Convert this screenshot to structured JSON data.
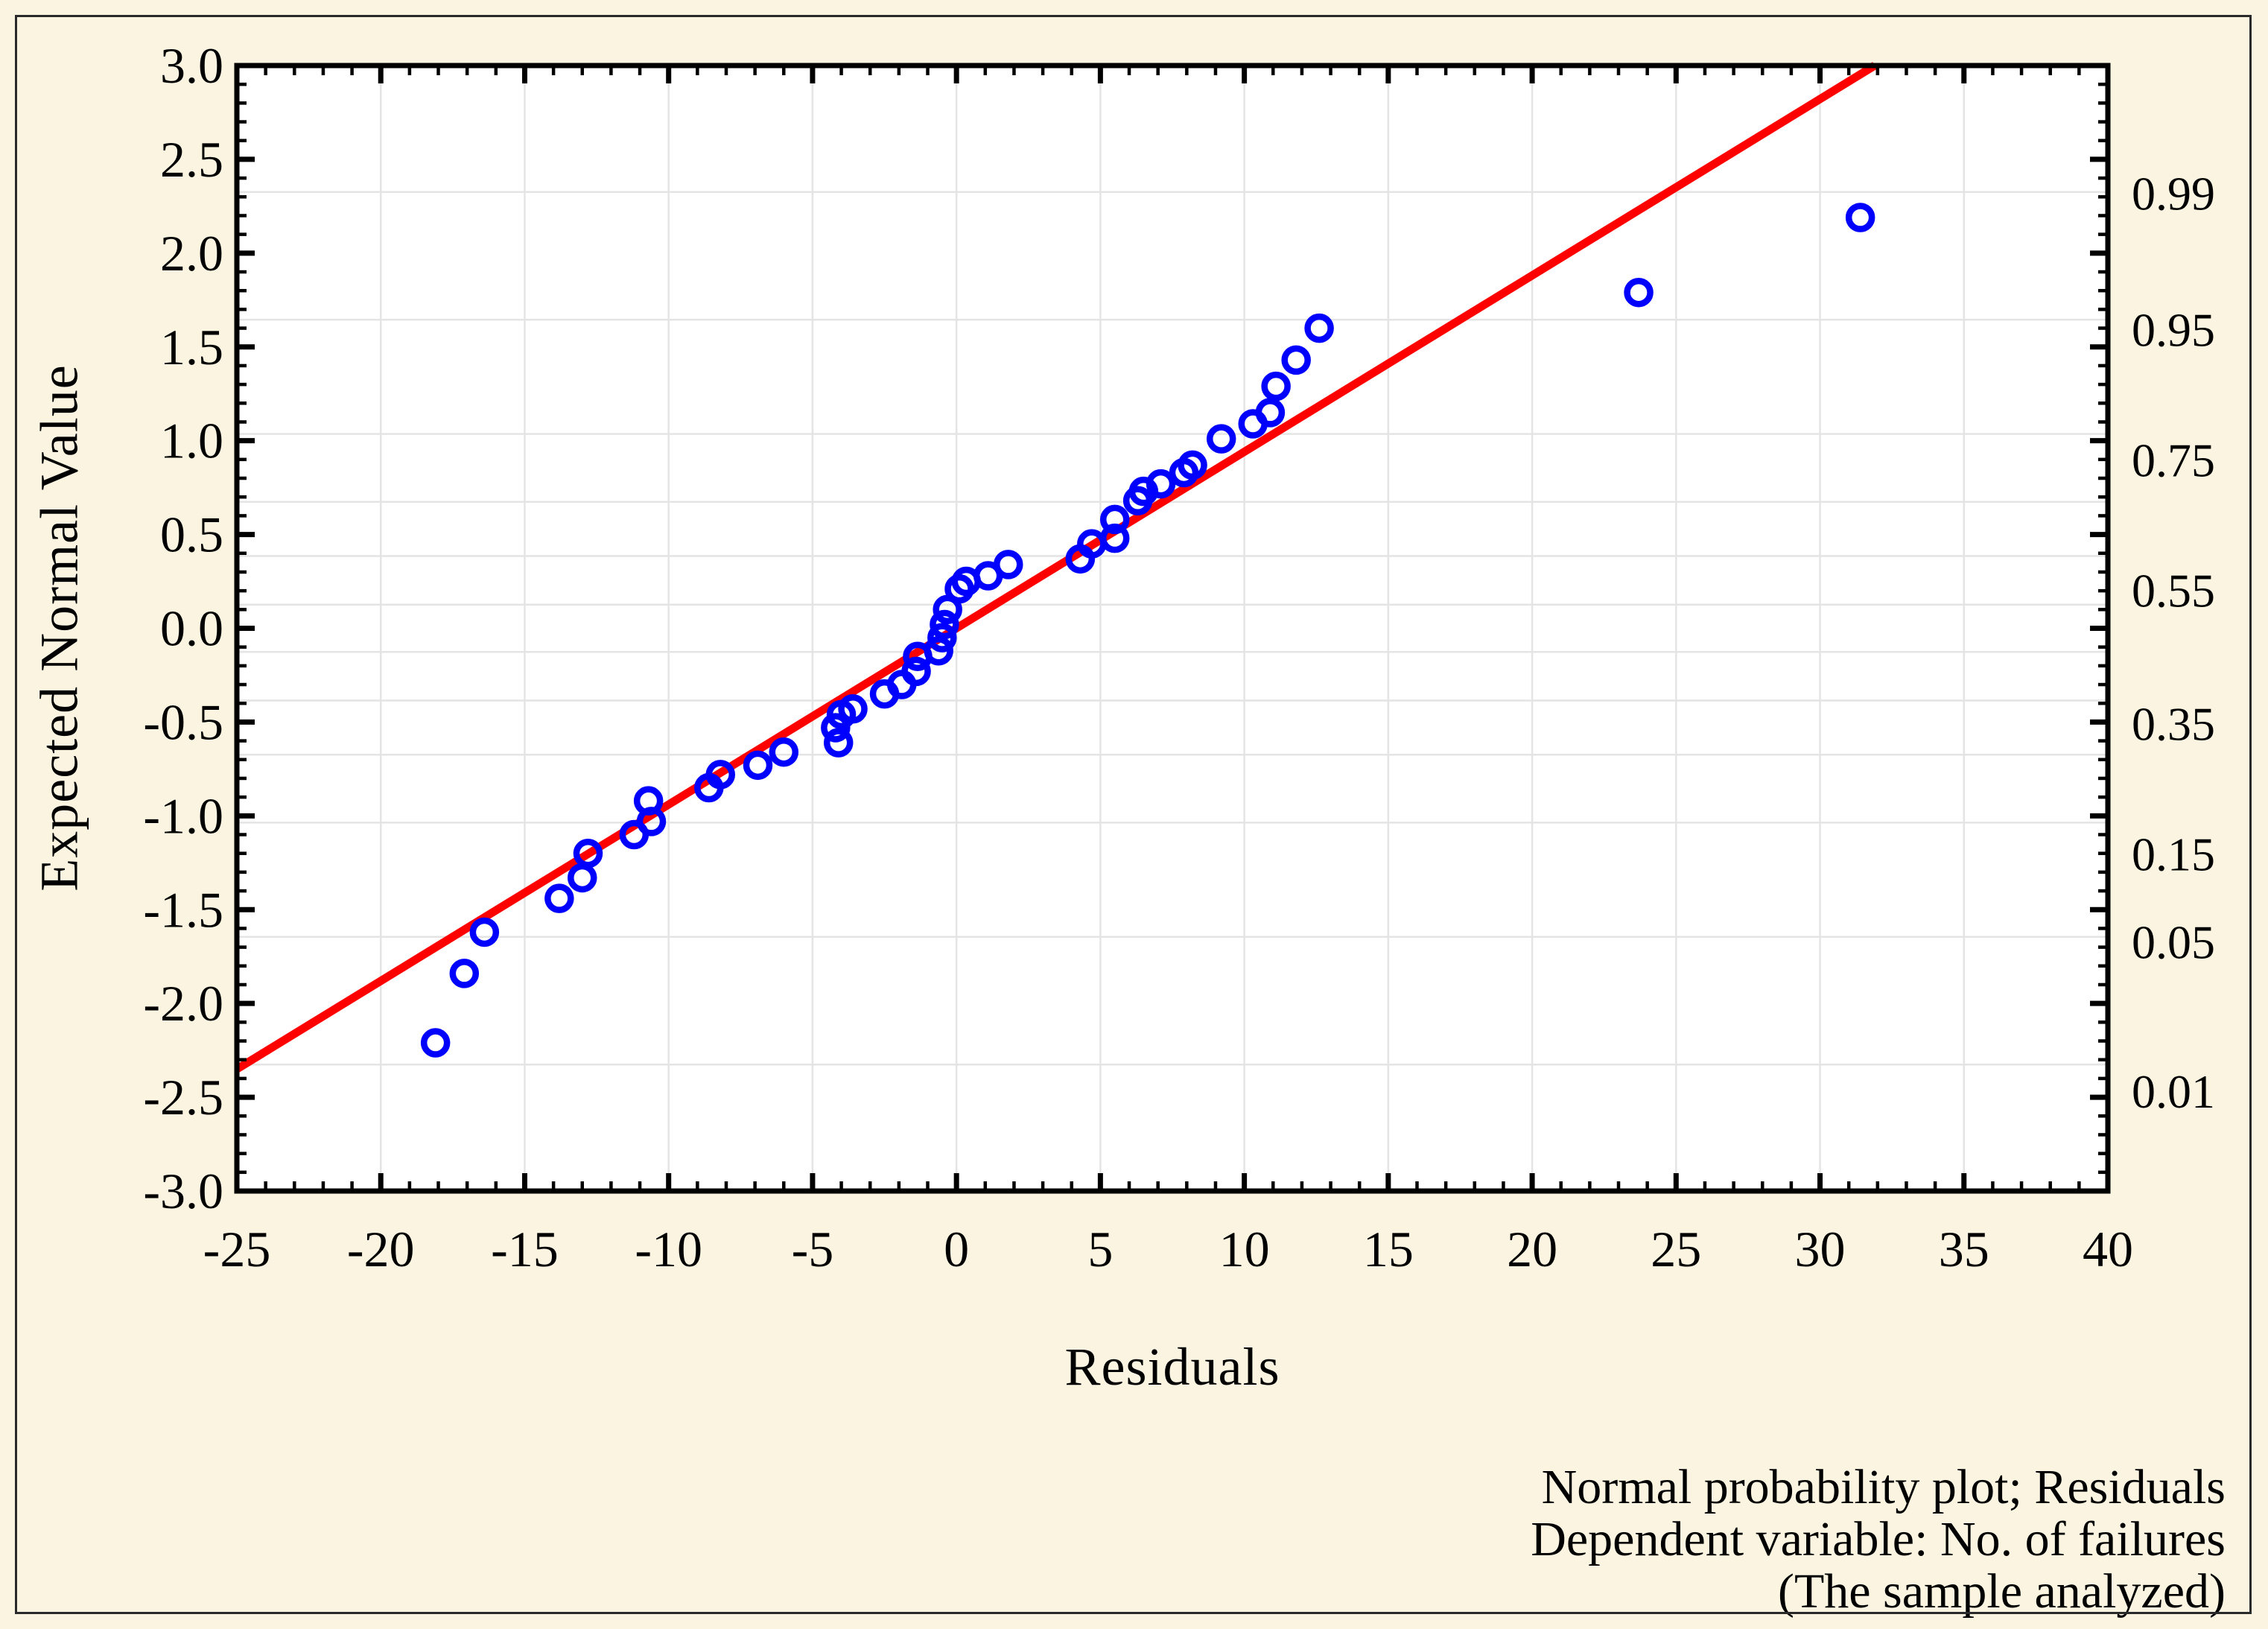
{
  "figure": {
    "background_color": "#FAF4E1",
    "plot_background_color": "#FFFFFF",
    "border_color": "#2a2a2a",
    "grid_color": "#E4E4E4",
    "axis_color": "#000000",
    "tick_label_color": "#000000"
  },
  "chart_data": {
    "type": "scatter",
    "title": "",
    "xlabel": "Residuals",
    "ylabel": "Expected Normal Value",
    "caption_lines": [
      "Normal probability plot; Residuals",
      "Dependent variable: No. of failures",
      "(The sample analyzed)"
    ],
    "xlim": [
      -25,
      40
    ],
    "ylim": [
      -3.0,
      3.0
    ],
    "grid": true,
    "x_tick_values": [
      -25,
      -20,
      -15,
      -10,
      -5,
      0,
      5,
      10,
      15,
      20,
      25,
      30,
      35,
      40
    ],
    "x_tick_labels": [
      "-25",
      "-20",
      "-15",
      "-10",
      "-5",
      "0",
      "5",
      "10",
      "15",
      "20",
      "25",
      "30",
      "35",
      "40"
    ],
    "x_minor_tick_step": 1,
    "y_tick_values": [
      3.0,
      2.5,
      2.0,
      1.5,
      1.0,
      0.5,
      0.0,
      -0.5,
      -1.0,
      -1.5,
      -2.0,
      -2.5,
      -3.0
    ],
    "y_tick_labels": [
      "3.0",
      "2.5",
      "2.0",
      "1.5",
      "1.0",
      "0.5",
      "0.0",
      "-0.5",
      "-1.0",
      "-1.5",
      "-2.0",
      "-2.5",
      "-3.0"
    ],
    "y_minor_tick_step": 0.1,
    "grid_x_values": [
      -20,
      -15,
      -10,
      -5,
      0,
      5,
      10,
      15,
      20,
      25,
      30,
      35
    ],
    "grid_y_probabilities": [
      0.99,
      0.95,
      0.85,
      0.75,
      0.65,
      0.55,
      0.45,
      0.35,
      0.25,
      0.15,
      0.05,
      0.01
    ],
    "grid_y_z_values": [
      2.326,
      1.645,
      1.036,
      0.674,
      0.385,
      0.126,
      -0.126,
      -0.385,
      -0.674,
      -1.036,
      -1.645,
      -2.326
    ],
    "right_axis": {
      "labels": [
        "0.99",
        "0.95",
        "0.75",
        "0.55",
        "0.35",
        "0.15",
        "0.05",
        "0.01"
      ],
      "label_z_positions": [
        2.318,
        1.591,
        0.896,
        0.201,
        -0.51,
        -1.205,
        -1.674,
        -2.47
      ]
    },
    "series": [
      {
        "name": "residuals-vs-expected-normal",
        "marker": "open-circle",
        "color": "#0000FF",
        "points": [
          [
            -18.1,
            -2.21
          ],
          [
            -17.1,
            -1.84
          ],
          [
            -16.4,
            -1.62
          ],
          [
            -13.8,
            -1.44
          ],
          [
            -13.0,
            -1.33
          ],
          [
            -12.8,
            -1.2
          ],
          [
            -11.2,
            -1.1
          ],
          [
            -10.6,
            -1.03
          ],
          [
            -10.7,
            -0.92
          ],
          [
            -8.6,
            -0.85
          ],
          [
            -8.2,
            -0.78
          ],
          [
            -6.9,
            -0.73
          ],
          [
            -6.0,
            -0.66
          ],
          [
            -4.1,
            -0.61
          ],
          [
            -4.2,
            -0.53
          ],
          [
            -4.0,
            -0.46
          ],
          [
            -3.6,
            -0.43
          ],
          [
            -2.5,
            -0.35
          ],
          [
            -1.9,
            -0.3
          ],
          [
            -1.4,
            -0.23
          ],
          [
            -1.35,
            -0.15
          ],
          [
            -0.62,
            -0.12
          ],
          [
            -0.5,
            -0.05
          ],
          [
            -0.42,
            0.02
          ],
          [
            -0.31,
            0.1
          ],
          [
            0.1,
            0.21
          ],
          [
            0.34,
            0.25
          ],
          [
            1.1,
            0.28
          ],
          [
            1.8,
            0.34
          ],
          [
            4.3,
            0.37
          ],
          [
            4.7,
            0.45
          ],
          [
            5.5,
            0.48
          ],
          [
            5.5,
            0.58
          ],
          [
            6.3,
            0.68
          ],
          [
            6.5,
            0.73
          ],
          [
            7.1,
            0.77
          ],
          [
            7.9,
            0.83
          ],
          [
            8.2,
            0.87
          ],
          [
            9.2,
            1.01
          ],
          [
            10.3,
            1.09
          ],
          [
            10.9,
            1.15
          ],
          [
            11.1,
            1.29
          ],
          [
            11.8,
            1.43
          ],
          [
            12.6,
            1.6
          ],
          [
            23.7,
            1.79
          ],
          [
            31.4,
            2.19
          ]
        ]
      }
    ],
    "fit_line": {
      "color": "#FF0000",
      "x_start": -25,
      "y_start": -2.35,
      "x_end": 31.9,
      "y_end": 3.0
    }
  }
}
